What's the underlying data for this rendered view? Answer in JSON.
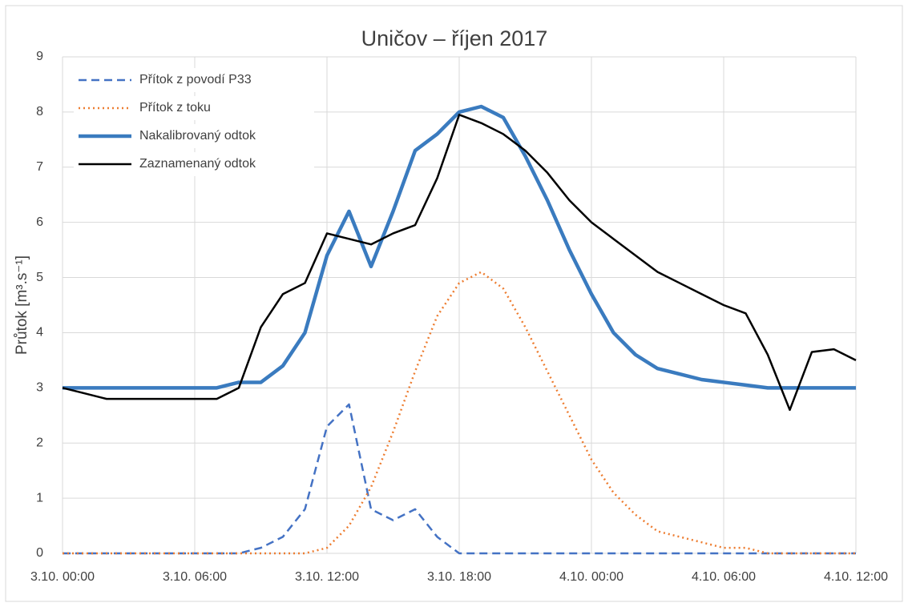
{
  "chart_data": {
    "type": "line",
    "title": "Uničov – říjen 2017",
    "y_label": "Průtok [m³.s⁻¹]",
    "x": [
      0,
      1,
      2,
      3,
      4,
      5,
      6,
      7,
      8,
      9,
      10,
      11,
      12,
      13,
      14,
      15,
      16,
      17,
      18,
      19,
      20,
      21,
      22,
      23,
      24,
      25,
      26,
      27,
      28,
      29,
      30,
      31,
      32,
      33,
      34,
      35,
      36
    ],
    "xlim": [
      0,
      36
    ],
    "xticks": [
      {
        "value": 0,
        "label": "3.10. 00:00"
      },
      {
        "value": 6,
        "label": "3.10. 06:00"
      },
      {
        "value": 12,
        "label": "3.10. 12:00"
      },
      {
        "value": 18,
        "label": "3.10. 18:00"
      },
      {
        "value": 24,
        "label": "4.10. 00:00"
      },
      {
        "value": 30,
        "label": "4.10. 06:00"
      },
      {
        "value": 36,
        "label": "4.10. 12:00"
      }
    ],
    "ylim": [
      0,
      9
    ],
    "yticks": [
      0,
      1,
      2,
      3,
      4,
      5,
      6,
      7,
      8,
      9
    ],
    "grid": true,
    "legend": "top-left",
    "series": [
      {
        "name": "Přítok z povodí P33",
        "color": "#4472c4",
        "style": "dashed",
        "linewidth": 2.5,
        "values": [
          0,
          0,
          0,
          0,
          0,
          0,
          0,
          0,
          0,
          0.1,
          0.3,
          0.8,
          2.3,
          2.7,
          0.8,
          0.6,
          0.8,
          0.3,
          0,
          0,
          0,
          0,
          0,
          0,
          0,
          0,
          0,
          0,
          0,
          0,
          0,
          0,
          0,
          0,
          0,
          0,
          0
        ]
      },
      {
        "name": "Přítok z toku",
        "color": "#ed7d31",
        "style": "dotted",
        "linewidth": 2.5,
        "values": [
          0,
          0,
          0,
          0,
          0,
          0,
          0,
          0,
          0,
          0,
          0,
          0,
          0.1,
          0.5,
          1.2,
          2.2,
          3.3,
          4.3,
          4.9,
          5.1,
          4.8,
          4.1,
          3.3,
          2.5,
          1.7,
          1.1,
          0.7,
          0.4,
          0.3,
          0.2,
          0.1,
          0.1,
          0,
          0,
          0,
          0,
          0
        ]
      },
      {
        "name": "Nakalibrovaný odtok",
        "color": "#3a7bbf",
        "style": "solid",
        "linewidth": 4.5,
        "values": [
          3,
          3,
          3,
          3,
          3,
          3,
          3,
          3,
          3.1,
          3.1,
          3.4,
          4.0,
          5.4,
          6.2,
          5.2,
          6.2,
          7.3,
          7.6,
          8.0,
          8.1,
          7.9,
          7.2,
          6.4,
          5.5,
          4.7,
          4.0,
          3.6,
          3.35,
          3.25,
          3.15,
          3.1,
          3.05,
          3,
          3,
          3,
          3,
          3
        ]
      },
      {
        "name": "Zaznamenaný odtok",
        "color": "#000000",
        "style": "solid",
        "linewidth": 2.5,
        "values": [
          3,
          2.9,
          2.8,
          2.8,
          2.8,
          2.8,
          2.8,
          2.8,
          3.0,
          4.1,
          4.7,
          4.9,
          5.8,
          5.7,
          5.6,
          5.8,
          5.95,
          6.8,
          7.95,
          7.8,
          7.6,
          7.3,
          6.9,
          6.4,
          6.0,
          5.7,
          5.4,
          5.1,
          4.9,
          4.7,
          4.5,
          4.35,
          3.6,
          2.6,
          3.65,
          3.7,
          3.5
        ]
      }
    ]
  }
}
